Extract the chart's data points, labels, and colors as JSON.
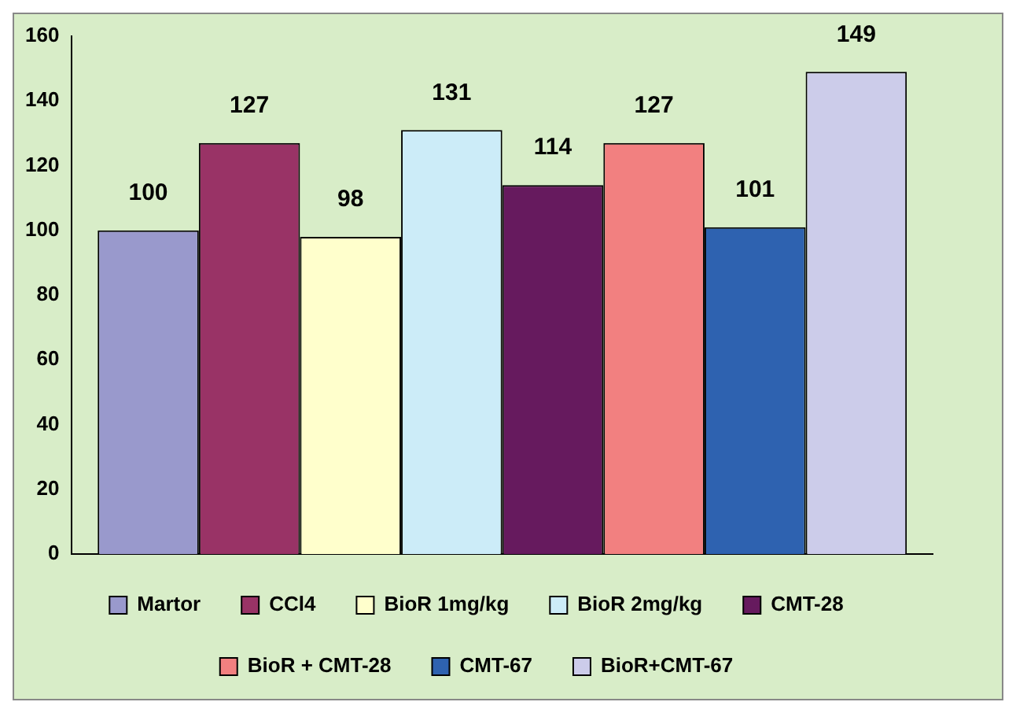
{
  "chart_data": {
    "type": "bar",
    "categories": [
      null
    ],
    "series": [
      {
        "name": "Martor",
        "color": "#9999cc",
        "values": [
          100
        ]
      },
      {
        "name": "CCl4",
        "color": "#993366",
        "values": [
          127
        ]
      },
      {
        "name": "BioR 1mg/kg",
        "color": "#ffffcc",
        "values": [
          98
        ]
      },
      {
        "name": "BioR 2mg/kg",
        "color": "#ccecf8",
        "values": [
          131
        ]
      },
      {
        "name": "CMT-28",
        "color": "#661a5e",
        "values": [
          114
        ]
      },
      {
        "name": "BioR + CMT-28",
        "color": "#f28080",
        "values": [
          127
        ]
      },
      {
        "name": "CMT-67",
        "color": "#2e62b0",
        "values": [
          101
        ]
      },
      {
        "name": "BioR+CMT-67",
        "color": "#ccccea",
        "values": [
          149
        ]
      }
    ],
    "ylim": [
      0,
      160
    ],
    "yticks": [
      0,
      20,
      40,
      60,
      80,
      100,
      120,
      140,
      160
    ],
    "grid": false,
    "legend": "bottom",
    "data_labels": true
  }
}
